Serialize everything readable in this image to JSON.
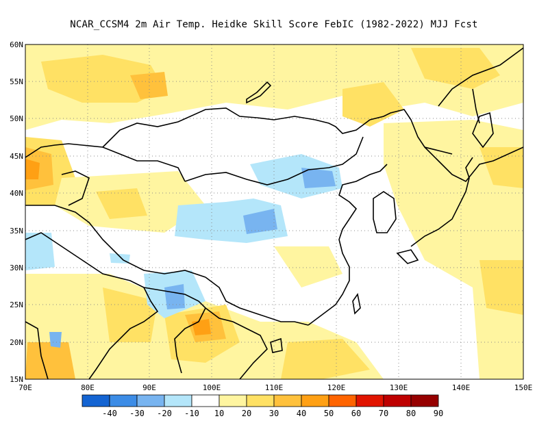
{
  "title": "NCAR_CCSM4  2m Air Temp. Heidke Skill Score FebIC (1982-2022) MJJ Fcst",
  "map": {
    "lon_labels": [
      "70E",
      "80E",
      "90E",
      "100E",
      "110E",
      "120E",
      "130E",
      "140E",
      "150E"
    ],
    "lat_labels": [
      "60N",
      "55N",
      "50N",
      "45N",
      "40N",
      "35N",
      "30N",
      "25N",
      "20N",
      "15N"
    ],
    "lon_range": [
      70,
      150
    ],
    "lat_range": [
      15,
      60
    ],
    "grid": "dotted"
  },
  "colorbar": {
    "labels": [
      "-40",
      "-30",
      "-20",
      "-10",
      "10",
      "20",
      "30",
      "40",
      "50",
      "60",
      "70",
      "80",
      "90"
    ],
    "colors": [
      "#1464d2",
      "#3c8ce6",
      "#78b4f0",
      "#b4e6fa",
      "#ffffff",
      "#fff5a0",
      "#ffe164",
      "#ffc13c",
      "#ffa014",
      "#ff6400",
      "#e11400",
      "#be0000",
      "#960000"
    ]
  }
}
